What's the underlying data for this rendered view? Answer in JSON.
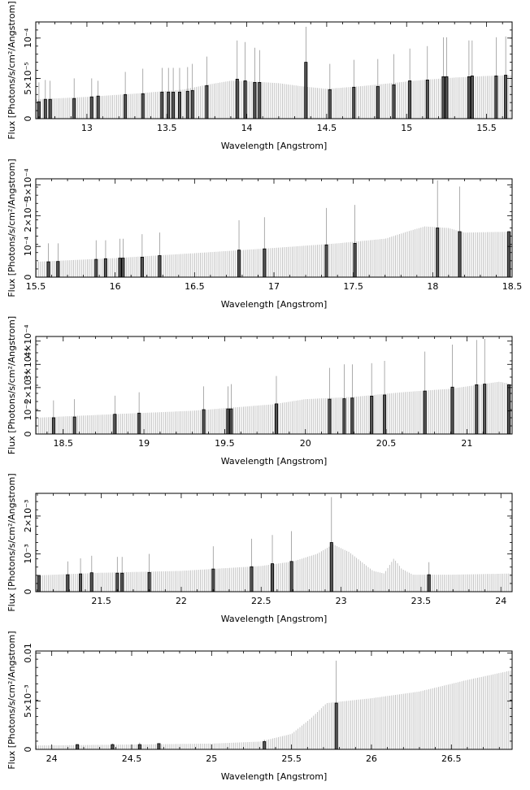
{
  "chart_data": [
    {
      "type": "bar",
      "xlabel": "Wavelength [Angstrom]",
      "ylabel": "Flux [Photons/s/cm²/Angstrom]",
      "xlim": [
        12.68,
        15.66
      ],
      "ylim": [
        0,
        0.00012
      ],
      "xticks": [
        {
          "v": 13,
          "label": "13"
        },
        {
          "v": 13.5,
          "label": "13.5"
        },
        {
          "v": 14,
          "label": "14"
        },
        {
          "v": 14.5,
          "label": "14.5"
        },
        {
          "v": 15,
          "label": "15"
        },
        {
          "v": 15.5,
          "label": "15.5"
        }
      ],
      "yticks": [
        {
          "v": 0,
          "label": "0"
        },
        {
          "v": 5e-05,
          "label": "5×10⁻⁵"
        },
        {
          "v": 0.0001,
          "label": "10⁻⁴"
        }
      ],
      "continuum": [
        [
          12.68,
          2.4e-05
        ],
        [
          13.0,
          2.7e-05
        ],
        [
          13.3,
          3.1e-05
        ],
        [
          13.6,
          3.6e-05
        ],
        [
          13.75,
          4.2e-05
        ],
        [
          13.9,
          4.7e-05
        ],
        [
          14.05,
          4.6e-05
        ],
        [
          14.2,
          4.4e-05
        ],
        [
          14.35,
          4e-05
        ],
        [
          14.5,
          3.7e-05
        ],
        [
          14.7,
          4e-05
        ],
        [
          14.9,
          4.4e-05
        ],
        [
          15.1,
          4.8e-05
        ],
        [
          15.3,
          5.1e-05
        ],
        [
          15.5,
          5.3e-05
        ],
        [
          15.66,
          5.4e-05
        ]
      ],
      "lines": [
        [
          12.7,
          2.1e-05,
          4.5e-05
        ],
        [
          12.74,
          2.4e-05,
          4.8e-05
        ],
        [
          12.77,
          2.4e-05,
          4.7e-05
        ],
        [
          12.92,
          2.5e-05,
          5e-05
        ],
        [
          13.03,
          2.7e-05,
          5e-05
        ],
        [
          13.07,
          2.8e-05,
          4.7e-05
        ],
        [
          13.24,
          3e-05,
          5.8e-05
        ],
        [
          13.35,
          3.1e-05,
          6.2e-05
        ],
        [
          13.47,
          3.3e-05,
          6.3e-05
        ],
        [
          13.51,
          3.3e-05,
          6.3e-05
        ],
        [
          13.54,
          3.3e-05,
          6.3e-05
        ],
        [
          13.58,
          3.3e-05,
          6.3e-05
        ],
        [
          13.63,
          3.4e-05,
          6.4e-05
        ],
        [
          13.66,
          3.5e-05,
          6.8e-05
        ],
        [
          13.75,
          4.1e-05,
          7.7e-05
        ],
        [
          13.94,
          4.9e-05,
          9.7e-05
        ],
        [
          13.99,
          4.7e-05,
          9.5e-05
        ],
        [
          14.05,
          4.5e-05,
          8.8e-05
        ],
        [
          14.08,
          4.5e-05,
          8.5e-05
        ],
        [
          14.37,
          7e-05,
          0.000114
        ],
        [
          14.52,
          3.6e-05,
          6.8e-05
        ],
        [
          14.67,
          3.9e-05,
          7.3e-05
        ],
        [
          14.82,
          4e-05,
          7.4e-05
        ],
        [
          14.92,
          4.2e-05,
          8e-05
        ],
        [
          15.02,
          4.7e-05,
          8.7e-05
        ],
        [
          15.13,
          4.8e-05,
          9e-05
        ],
        [
          15.23,
          5.2e-05,
          0.000101
        ],
        [
          15.25,
          5.2e-05,
          0.000101
        ],
        [
          15.39,
          5.2e-05,
          9.7e-05
        ],
        [
          15.41,
          5.3e-05,
          9.7e-05
        ],
        [
          15.56,
          5.3e-05,
          0.000101
        ],
        [
          15.62,
          5.4e-05,
          0.000102
        ]
      ]
    },
    {
      "type": "bar",
      "xlabel": "Wavelength [Angstrom]",
      "ylabel": "Flux [Photons/s/cm²/Angstrom]",
      "xlim": [
        15.5,
        18.5
      ],
      "ylim": [
        0,
        0.00032
      ],
      "xticks": [
        {
          "v": 15.5,
          "label": "15.5"
        },
        {
          "v": 16,
          "label": "16"
        },
        {
          "v": 16.5,
          "label": "16.5"
        },
        {
          "v": 17,
          "label": "17"
        },
        {
          "v": 17.5,
          "label": "17.5"
        },
        {
          "v": 18,
          "label": "18"
        },
        {
          "v": 18.5,
          "label": "18.5"
        }
      ],
      "yticks": [
        {
          "v": 0,
          "label": "0"
        },
        {
          "v": 0.0001,
          "label": "10⁻⁴"
        },
        {
          "v": 0.0002,
          "label": "2×10⁻⁴"
        },
        {
          "v": 0.0003,
          "label": "3×10⁻⁴"
        }
      ],
      "continuum": [
        [
          15.5,
          5e-05
        ],
        [
          16.0,
          6.2e-05
        ],
        [
          16.5,
          7.8e-05
        ],
        [
          17.0,
          9.5e-05
        ],
        [
          17.4,
          0.00011
        ],
        [
          17.7,
          0.000125
        ],
        [
          17.85,
          0.00015
        ],
        [
          17.95,
          0.000165
        ],
        [
          18.1,
          0.00016
        ],
        [
          18.2,
          0.000145
        ],
        [
          18.5,
          0.000148
        ]
      ],
      "lines": [
        [
          15.58,
          5e-05,
          0.00011
        ],
        [
          15.64,
          5.1e-05,
          0.00011
        ],
        [
          15.88,
          5.8e-05,
          0.00012
        ],
        [
          15.94,
          6e-05,
          0.00012
        ],
        [
          16.03,
          6.2e-05,
          0.000125
        ],
        [
          16.05,
          6.2e-05,
          0.000125
        ],
        [
          16.17,
          6.5e-05,
          0.00014
        ],
        [
          16.28,
          7e-05,
          0.000145
        ],
        [
          16.78,
          8.8e-05,
          0.000185
        ],
        [
          16.94,
          9.2e-05,
          0.000195
        ],
        [
          17.33,
          0.000105,
          0.000225
        ],
        [
          17.51,
          0.00011,
          0.000235
        ],
        [
          18.03,
          0.00016,
          0.000315
        ],
        [
          18.17,
          0.000148,
          0.000295
        ],
        [
          18.48,
          0.000148,
          0.000148
        ]
      ]
    },
    {
      "type": "bar",
      "xlabel": "Wavelength [Angstrom]",
      "ylabel": "Flux [Photons/s/cm²/Angstrom]",
      "xlim": [
        18.33,
        21.28
      ],
      "ylim": [
        0,
        0.00042
      ],
      "xticks": [
        {
          "v": 18.5,
          "label": "18.5"
        },
        {
          "v": 19,
          "label": "19"
        },
        {
          "v": 19.5,
          "label": "19.5"
        },
        {
          "v": 20,
          "label": "20"
        },
        {
          "v": 20.5,
          "label": "20.5"
        },
        {
          "v": 21,
          "label": "21"
        }
      ],
      "yticks": [
        {
          "v": 0,
          "label": "0"
        },
        {
          "v": 0.0001,
          "label": "10⁻⁴"
        },
        {
          "v": 0.0002,
          "label": "2×10⁻⁴"
        },
        {
          "v": 0.0003,
          "label": "3×10⁻⁴"
        },
        {
          "v": 0.0004,
          "label": "4×10⁻⁴"
        }
      ],
      "continuum": [
        [
          18.33,
          7e-05
        ],
        [
          18.8,
          8.5e-05
        ],
        [
          19.3,
          0.0001
        ],
        [
          19.8,
          0.000128
        ],
        [
          20.0,
          0.00015
        ],
        [
          20.3,
          0.00016
        ],
        [
          20.6,
          0.00018
        ],
        [
          20.9,
          0.000195
        ],
        [
          21.1,
          0.000215
        ],
        [
          21.2,
          0.000225
        ],
        [
          21.28,
          0.000215
        ]
      ],
      "lines": [
        [
          18.44,
          7e-05,
          0.000145
        ],
        [
          18.57,
          7.3e-05,
          0.00015
        ],
        [
          18.82,
          8.5e-05,
          0.000165
        ],
        [
          18.97,
          9e-05,
          0.00018
        ],
        [
          19.37,
          0.000105,
          0.000205
        ],
        [
          19.52,
          0.000108,
          0.000205
        ],
        [
          19.54,
          0.000108,
          0.000215
        ],
        [
          19.82,
          0.00013,
          0.00025
        ],
        [
          20.15,
          0.00015,
          0.000285
        ],
        [
          20.24,
          0.000152,
          0.0003
        ],
        [
          20.29,
          0.000155,
          0.0003
        ],
        [
          20.41,
          0.000163,
          0.000305
        ],
        [
          20.49,
          0.000168,
          0.000315
        ],
        [
          20.74,
          0.000185,
          0.000355
        ],
        [
          20.91,
          0.000202,
          0.000385
        ],
        [
          21.06,
          0.000212,
          0.000405
        ],
        [
          21.11,
          0.000215,
          0.00041
        ],
        [
          21.26,
          0.000212,
          0.000212
        ]
      ]
    },
    {
      "type": "bar",
      "xlabel": "Wavelength [Angstrom]",
      "ylabel": "Flux [Photons/s/cm²/Angstrom]",
      "xlim": [
        21.09,
        24.07
      ],
      "ylim": [
        0,
        0.0026
      ],
      "xticks": [
        {
          "v": 21.5,
          "label": "21.5"
        },
        {
          "v": 22,
          "label": "22"
        },
        {
          "v": 22.5,
          "label": "22.5"
        },
        {
          "v": 23,
          "label": "23"
        },
        {
          "v": 23.5,
          "label": "23.5"
        },
        {
          "v": 24,
          "label": "24"
        }
      ],
      "yticks": [
        {
          "v": 0,
          "label": "0"
        },
        {
          "v": 0.001,
          "label": "10⁻³"
        },
        {
          "v": 0.002,
          "label": "2×10⁻³"
        }
      ],
      "continuum": [
        [
          21.09,
          0.00043
        ],
        [
          21.5,
          0.0005
        ],
        [
          22.0,
          0.00055
        ],
        [
          22.5,
          0.00068
        ],
        [
          22.7,
          0.0008
        ],
        [
          22.85,
          0.001
        ],
        [
          22.95,
          0.00125
        ],
        [
          23.05,
          0.00105
        ],
        [
          23.2,
          0.00055
        ],
        [
          23.27,
          0.00048
        ],
        [
          23.33,
          0.00088
        ],
        [
          23.38,
          0.0006
        ],
        [
          23.45,
          0.00045
        ],
        [
          23.7,
          0.00045
        ],
        [
          24.07,
          0.00048
        ]
      ],
      "lines": [
        [
          21.11,
          0.00043,
          0.00043
        ],
        [
          21.29,
          0.00045,
          0.0008
        ],
        [
          21.37,
          0.00047,
          0.00088
        ],
        [
          21.44,
          0.0005,
          0.00095
        ],
        [
          21.6,
          0.00049,
          0.00092
        ],
        [
          21.63,
          0.00049,
          0.00092
        ],
        [
          21.8,
          0.00051,
          0.001
        ],
        [
          22.2,
          0.0006,
          0.0012
        ],
        [
          22.44,
          0.00066,
          0.0014
        ],
        [
          22.57,
          0.00074,
          0.0015
        ],
        [
          22.69,
          0.0008,
          0.0016
        ],
        [
          22.94,
          0.0013,
          0.0025
        ],
        [
          23.55,
          0.00045,
          0.00078
        ]
      ]
    },
    {
      "type": "bar",
      "xlabel": "Wavelength [Angstrom]",
      "ylabel": "Flux [Photons/s/cm²/Angstrom]",
      "xlim": [
        23.9,
        26.88
      ],
      "ylim": [
        0,
        0.0102
      ],
      "xticks": [
        {
          "v": 24,
          "label": "24"
        },
        {
          "v": 24.5,
          "label": "24.5"
        },
        {
          "v": 25,
          "label": "25"
        },
        {
          "v": 25.5,
          "label": "25.5"
        },
        {
          "v": 26,
          "label": "26"
        },
        {
          "v": 26.5,
          "label": "26.5"
        }
      ],
      "yticks": [
        {
          "v": 0,
          "label": "0"
        },
        {
          "v": 0.005,
          "label": "5×10⁻³"
        },
        {
          "v": 0.01,
          "label": "0.01"
        }
      ],
      "continuum": [
        [
          23.9,
          0.0004
        ],
        [
          24.5,
          0.0005
        ],
        [
          25.0,
          0.0006
        ],
        [
          25.3,
          0.0008
        ],
        [
          25.5,
          0.0016
        ],
        [
          25.62,
          0.0032
        ],
        [
          25.72,
          0.0048
        ],
        [
          26.0,
          0.0053
        ],
        [
          26.3,
          0.006
        ],
        [
          26.6,
          0.0072
        ],
        [
          26.88,
          0.0082
        ]
      ],
      "lines": [
        [
          24.16,
          0.0005,
          0.0005
        ],
        [
          24.38,
          0.0005,
          0.0006
        ],
        [
          24.55,
          0.0005,
          0.0007
        ],
        [
          24.67,
          0.0006,
          0.0006
        ],
        [
          25.33,
          0.0008,
          0.001
        ],
        [
          25.78,
          0.0048,
          0.0092
        ]
      ]
    }
  ]
}
